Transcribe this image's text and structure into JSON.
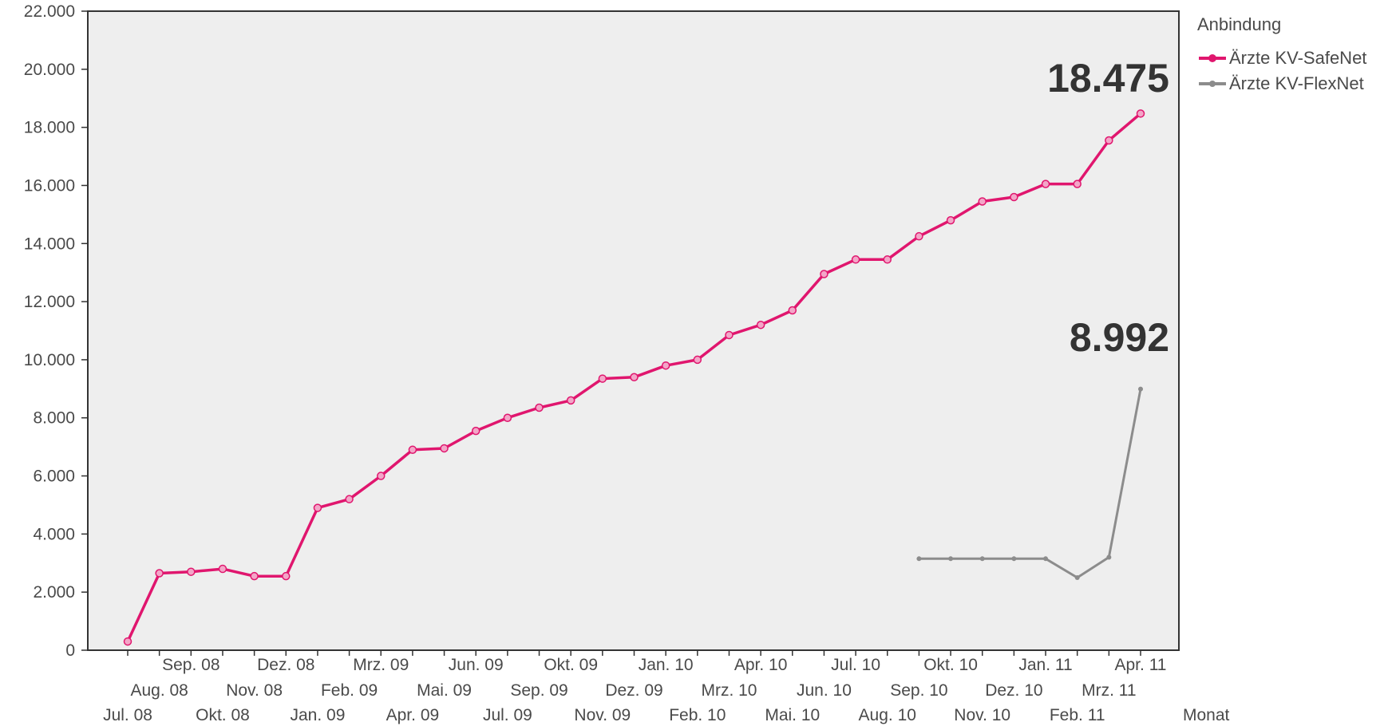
{
  "chart_data": {
    "type": "line",
    "xlabel": "Monat",
    "ylabel": "",
    "ylim": [
      0,
      22000
    ],
    "yticks": [
      0,
      2000,
      4000,
      6000,
      8000,
      10000,
      12000,
      14000,
      16000,
      18000,
      20000,
      22000
    ],
    "ytick_labels": [
      "0",
      "2.000",
      "4.000",
      "6.000",
      "8.000",
      "10.000",
      "12.000",
      "14.000",
      "16.000",
      "18.000",
      "20.000",
      "22.000"
    ],
    "categories": [
      "Jul. 08",
      "Aug. 08",
      "Sep. 08",
      "Okt. 08",
      "Nov. 08",
      "Dez. 08",
      "Jan. 09",
      "Feb. 09",
      "Mrz. 09",
      "Apr. 09",
      "Mai. 09",
      "Jun. 09",
      "Jul. 09",
      "Sep. 09",
      "Okt. 09",
      "Nov. 09",
      "Dez. 09",
      "Jan. 10",
      "Feb. 10",
      "Mrz. 10",
      "Apr. 10",
      "Mai. 10",
      "Jun. 10",
      "Jul. 10",
      "Aug. 10",
      "Sep. 10",
      "Okt. 10",
      "Nov. 10",
      "Dez. 10",
      "Jan. 11",
      "Feb. 11",
      "Mrz. 11",
      "Apr. 11"
    ],
    "series": [
      {
        "name": "Ärzte KV-SafeNet",
        "color": "#e0166e",
        "marker": "circle",
        "values": [
          300,
          2650,
          2700,
          2800,
          2550,
          2550,
          4900,
          5200,
          6000,
          6900,
          6950,
          7550,
          8000,
          8350,
          8600,
          9350,
          9400,
          9800,
          10000,
          10850,
          11200,
          11700,
          12950,
          13450,
          13450,
          14250,
          14800,
          15450,
          15600,
          16050,
          16050,
          17550,
          18475
        ]
      },
      {
        "name": "Ärzte KV-FlexNet",
        "color": "#8c8c8c",
        "marker": "dot",
        "values": [
          null,
          null,
          null,
          null,
          null,
          null,
          null,
          null,
          null,
          null,
          null,
          null,
          null,
          null,
          null,
          null,
          null,
          null,
          null,
          null,
          null,
          null,
          null,
          null,
          null,
          3150,
          3150,
          3150,
          3150,
          3150,
          2500,
          3200,
          8992
        ]
      }
    ],
    "annotations": [
      "18.475",
      "8.992"
    ],
    "legend": {
      "title": "Anbindung",
      "position": "right"
    },
    "grid": false,
    "plot_background": "#eeeeee"
  }
}
